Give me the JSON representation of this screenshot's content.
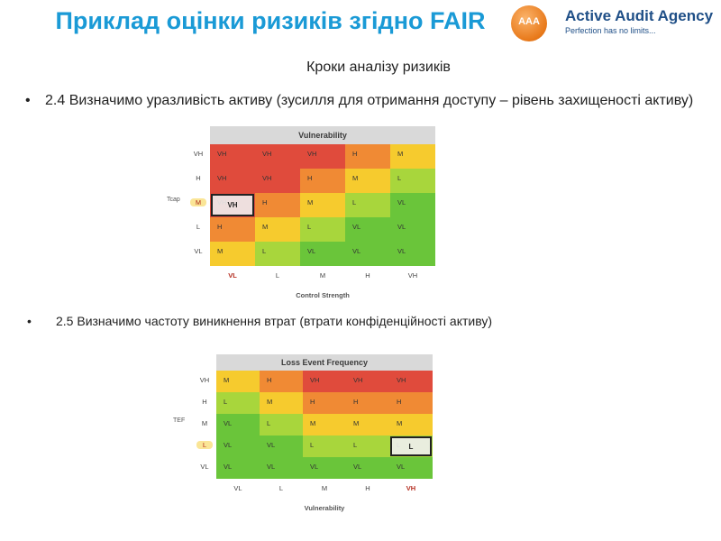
{
  "slide": {
    "title": "Приклад оцінки ризиків згідно FAIR",
    "subtitle": "Кроки аналізу ризиків",
    "bullet1": "2.4 Визначимо уразливість активу (зусилля для отримання доступу – рівень захищеності активу)",
    "bullet2": "2.5 Визначимо частоту виникнення втрат (втрати конфіденційності активу)",
    "bullet_symbol": "•"
  },
  "logo": {
    "name": "Active Audit Agency",
    "tagline": "Perfection has no limits...",
    "mark": "AAA"
  },
  "matrix1": {
    "header": "Vulnerability",
    "row_labels": [
      "VH",
      "H",
      "M",
      "L",
      "VL"
    ],
    "col_labels": [
      "VL",
      "L",
      "M",
      "H",
      "VH"
    ],
    "side_label": "Tcap",
    "bottom_title": "Control Strength",
    "cells": [
      [
        "VH",
        "VH",
        "VH",
        "H",
        "M"
      ],
      [
        "VH",
        "VH",
        "H",
        "M",
        "L"
      ],
      [
        "VH",
        "H",
        "M",
        "L",
        "VL"
      ],
      [
        "H",
        "M",
        "L",
        "VL",
        "VL"
      ],
      [
        "M",
        "L",
        "VL",
        "VL",
        "VL"
      ]
    ],
    "highlight": {
      "row": 2,
      "col": 0,
      "value": "VH"
    },
    "highlight_row_label": "M",
    "highlight_col_label": "VL"
  },
  "matrix2": {
    "header": "Loss Event Frequency",
    "row_labels": [
      "VH",
      "H",
      "M",
      "L",
      "VL"
    ],
    "col_labels": [
      "VL",
      "L",
      "M",
      "H",
      "VH"
    ],
    "side_label": "TEF",
    "bottom_title": "Vulnerability",
    "cells": [
      [
        "M",
        "H",
        "VH",
        "VH",
        "VH"
      ],
      [
        "L",
        "M",
        "H",
        "H",
        "H"
      ],
      [
        "VL",
        "L",
        "M",
        "M",
        "M"
      ],
      [
        "VL",
        "VL",
        "L",
        "L",
        "L"
      ],
      [
        "VL",
        "VL",
        "VL",
        "VL",
        "VL"
      ]
    ],
    "highlight": {
      "row": 3,
      "col": 4,
      "value": "L"
    },
    "highlight_row_label": "L",
    "highlight_col_label": "VH"
  },
  "colors": {
    "title": "#1a9ad6",
    "VH": "#e04b3c",
    "H": "#f08a34",
    "M": "#f6cb2e",
    "L": "#a8d63c",
    "VL": "#6ac53a"
  }
}
